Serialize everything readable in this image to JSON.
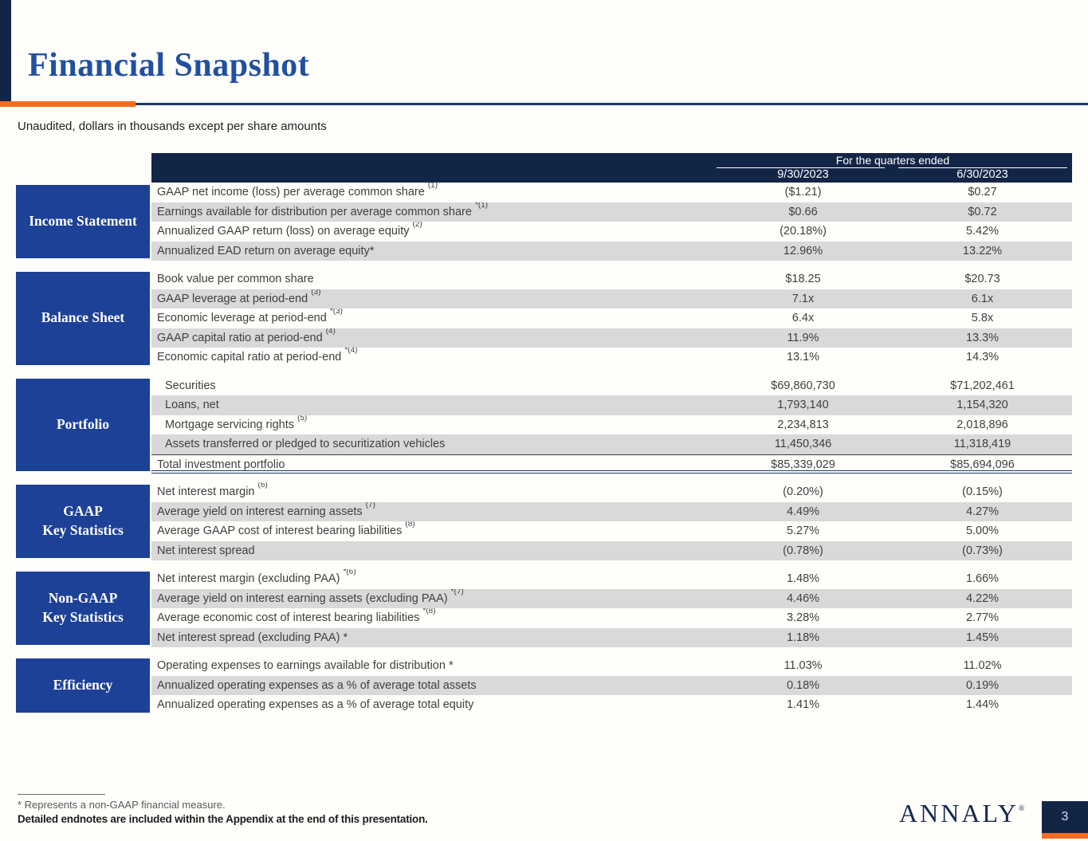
{
  "slide": {
    "title": "Financial Snapshot",
    "subtitle": "Unaudited, dollars in thousands except per share amounts",
    "page_number": "3",
    "logo_text": "ANNALY",
    "logo_mark": "®"
  },
  "colors": {
    "navy": "#132547",
    "royal_blue": "#1c4197",
    "orange": "#f36c21",
    "stripe_gray": "#d9d9d9",
    "title_blue": "#2150a0"
  },
  "table": {
    "header_group": "For the quarters ended",
    "columns": [
      "9/30/2023",
      "6/30/2023"
    ],
    "sections": [
      {
        "label_lines": [
          "Income Statement"
        ],
        "rows": [
          {
            "label": "GAAP net income (loss) per average common share ",
            "sup": "(1)",
            "indent": false,
            "total": false,
            "v1": "($1.21)",
            "v2": "$0.27"
          },
          {
            "label": "Earnings available for distribution per average common share ",
            "sup": "*(1)",
            "indent": false,
            "total": false,
            "v1": "$0.66",
            "v2": "$0.72"
          },
          {
            "label": "Annualized GAAP return (loss) on average equity ",
            "sup": "(2)",
            "indent": false,
            "total": false,
            "v1": "(20.18%)",
            "v2": "5.42%"
          },
          {
            "label": "Annualized EAD return on average equity*",
            "sup": "",
            "indent": false,
            "total": false,
            "v1": "12.96%",
            "v2": "13.22%"
          }
        ]
      },
      {
        "label_lines": [
          "Balance Sheet"
        ],
        "rows": [
          {
            "label": "Book value per common share",
            "sup": "",
            "indent": false,
            "total": false,
            "v1": "$18.25",
            "v2": "$20.73"
          },
          {
            "label": "GAAP leverage at period-end ",
            "sup": "(3)",
            "indent": false,
            "total": false,
            "v1": "7.1x",
            "v2": "6.1x"
          },
          {
            "label": "Economic leverage at period-end ",
            "sup": "*(3)",
            "indent": false,
            "total": false,
            "v1": "6.4x",
            "v2": "5.8x"
          },
          {
            "label": "GAAP capital ratio at period-end ",
            "sup": "(4)",
            "indent": false,
            "total": false,
            "v1": "11.9%",
            "v2": "13.3%"
          },
          {
            "label": "Economic capital ratio at period-end ",
            "sup": "*(4)",
            "indent": false,
            "total": false,
            "v1": "13.1%",
            "v2": "14.3%"
          }
        ]
      },
      {
        "label_lines": [
          "Portfolio"
        ],
        "rows": [
          {
            "label": "Securities",
            "sup": "",
            "indent": true,
            "total": false,
            "v1": "$69,860,730",
            "v2": "$71,202,461"
          },
          {
            "label": "Loans, net",
            "sup": "",
            "indent": true,
            "total": false,
            "v1": "1,793,140",
            "v2": "1,154,320"
          },
          {
            "label": "Mortgage servicing rights ",
            "sup": "(5)",
            "indent": true,
            "total": false,
            "v1": "2,234,813",
            "v2": "2,018,896"
          },
          {
            "label": "Assets transferred or pledged to securitization vehicles",
            "sup": "",
            "indent": true,
            "total": false,
            "v1": "11,450,346",
            "v2": "11,318,419"
          },
          {
            "label": "Total investment portfolio",
            "sup": "",
            "indent": false,
            "total": true,
            "v1": "$85,339,029",
            "v2": "$85,694,096"
          }
        ]
      },
      {
        "label_lines": [
          "GAAP",
          "Key Statistics"
        ],
        "rows": [
          {
            "label": "Net interest margin ",
            "sup": "(6)",
            "indent": false,
            "total": false,
            "v1": "(0.20%)",
            "v2": "(0.15%)"
          },
          {
            "label": "Average yield on interest earning assets ",
            "sup": "(7)",
            "indent": false,
            "total": false,
            "v1": "4.49%",
            "v2": "4.27%"
          },
          {
            "label": "Average GAAP cost of interest bearing liabilities ",
            "sup": "(8)",
            "indent": false,
            "total": false,
            "v1": "5.27%",
            "v2": "5.00%"
          },
          {
            "label": "Net interest spread",
            "sup": "",
            "indent": false,
            "total": false,
            "v1": "(0.78%)",
            "v2": "(0.73%)"
          }
        ]
      },
      {
        "label_lines": [
          "Non-GAAP",
          "Key Statistics"
        ],
        "rows": [
          {
            "label": "Net interest margin (excluding PAA) ",
            "sup": "*(6)",
            "indent": false,
            "total": false,
            "v1": "1.48%",
            "v2": "1.66%"
          },
          {
            "label": "Average yield on interest earning assets (excluding PAA) ",
            "sup": "*(7)",
            "indent": false,
            "total": false,
            "v1": "4.46%",
            "v2": "4.22%"
          },
          {
            "label": "Average economic cost of interest bearing liabilities ",
            "sup": "*(8)",
            "indent": false,
            "total": false,
            "v1": "3.28%",
            "v2": "2.77%"
          },
          {
            "label": "Net interest spread (excluding PAA) *",
            "sup": "",
            "indent": false,
            "total": false,
            "v1": "1.18%",
            "v2": "1.45%"
          }
        ]
      },
      {
        "label_lines": [
          "Efficiency"
        ],
        "rows": [
          {
            "label": "Operating expenses to earnings available for distribution *",
            "sup": "",
            "indent": false,
            "total": false,
            "v1": "11.03%",
            "v2": "11.02%"
          },
          {
            "label": "Annualized operating expenses as a % of average total assets",
            "sup": "",
            "indent": false,
            "total": false,
            "v1": "0.18%",
            "v2": "0.19%"
          },
          {
            "label": "Annualized operating expenses as a % of average total equity",
            "sup": "",
            "indent": false,
            "total": false,
            "v1": "1.41%",
            "v2": "1.44%"
          }
        ]
      }
    ]
  },
  "footer": {
    "star_note": "* Represents a non-GAAP financial measure.",
    "detail_note": "Detailed endnotes are included within the Appendix at the end of this presentation."
  }
}
